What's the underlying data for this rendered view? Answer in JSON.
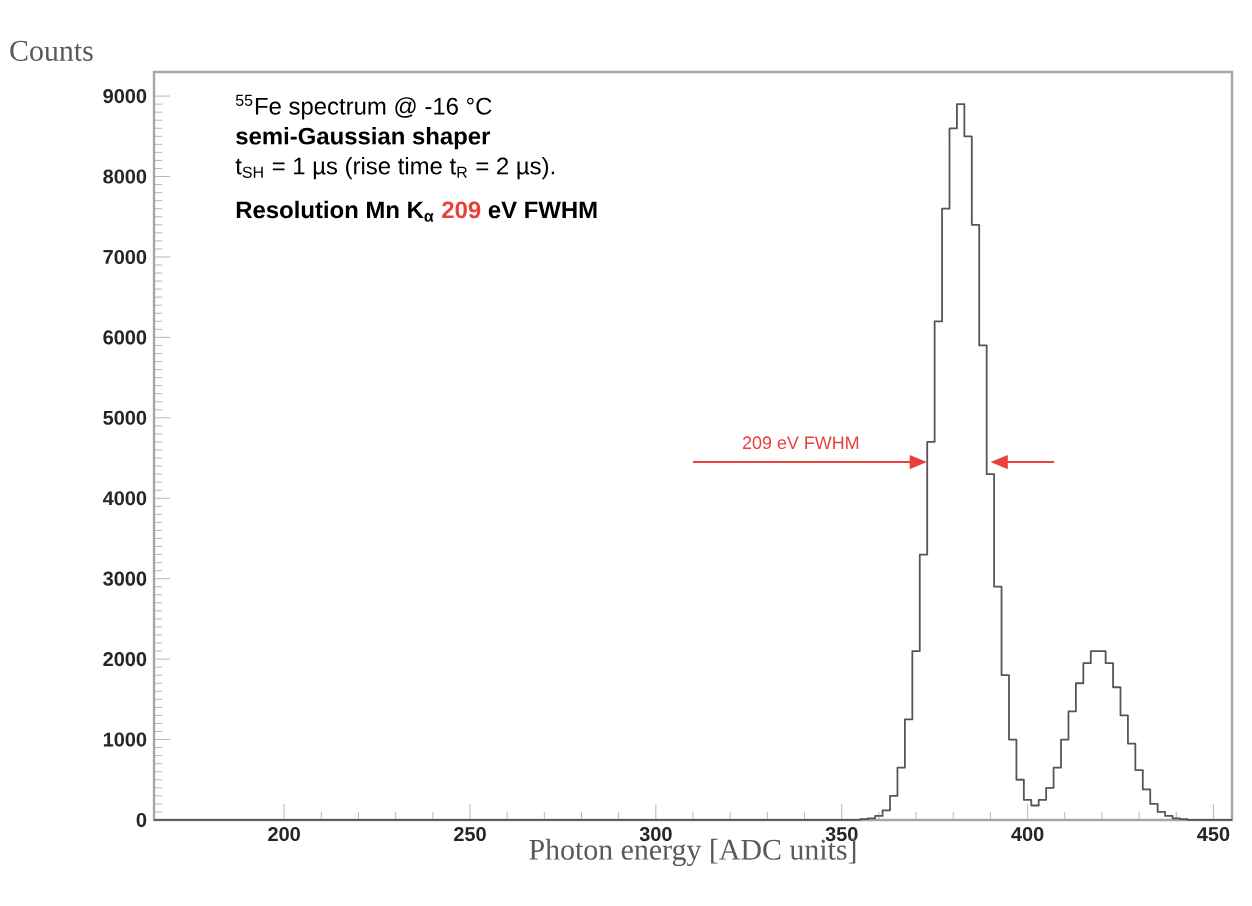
{
  "chart_data": {
    "type": "histogram",
    "xlabel": "Photon energy [ADC units]",
    "ylabel": "Counts",
    "bins": [
      165,
      355,
      357,
      359,
      361,
      363,
      365,
      367,
      369,
      371,
      373,
      375,
      377,
      379,
      381,
      383,
      385,
      387,
      389,
      391,
      393,
      395,
      397,
      399,
      401,
      403,
      405,
      407,
      409,
      411,
      413,
      415,
      417,
      419,
      421,
      423,
      425,
      427,
      429,
      431,
      433,
      435,
      437,
      439,
      441,
      443,
      445,
      455
    ],
    "values": [
      0,
      10,
      20,
      50,
      120,
      300,
      650,
      1250,
      2100,
      3300,
      4700,
      6200,
      7600,
      8600,
      8900,
      8500,
      7400,
      5900,
      4300,
      2900,
      1800,
      1000,
      500,
      250,
      180,
      250,
      400,
      650,
      1000,
      1350,
      1700,
      1950,
      2100,
      2100,
      1950,
      1650,
      1300,
      950,
      620,
      380,
      200,
      100,
      50,
      20,
      10,
      0,
      0
    ],
    "color": "#555555",
    "xlim": [
      165,
      455
    ],
    "ylim": [
      0,
      9300
    ],
    "xticks": [
      200,
      250,
      300,
      350,
      400,
      450
    ],
    "yticks": [
      0,
      1000,
      2000,
      3000,
      4000,
      5000,
      6000,
      7000,
      8000,
      9000
    ],
    "grid": false,
    "annotations": [
      "$^{55}$Fe spectrum @ -16 °C",
      "semi-Gaussian shaper",
      "t$_{SH}$ = 1 µs (rise time t$_{R}$ = 2 µs).",
      "Resolution Mn K$_{α}$",
      "209",
      "eV FWHM",
      "209 eV FWHM"
    ]
  }
}
